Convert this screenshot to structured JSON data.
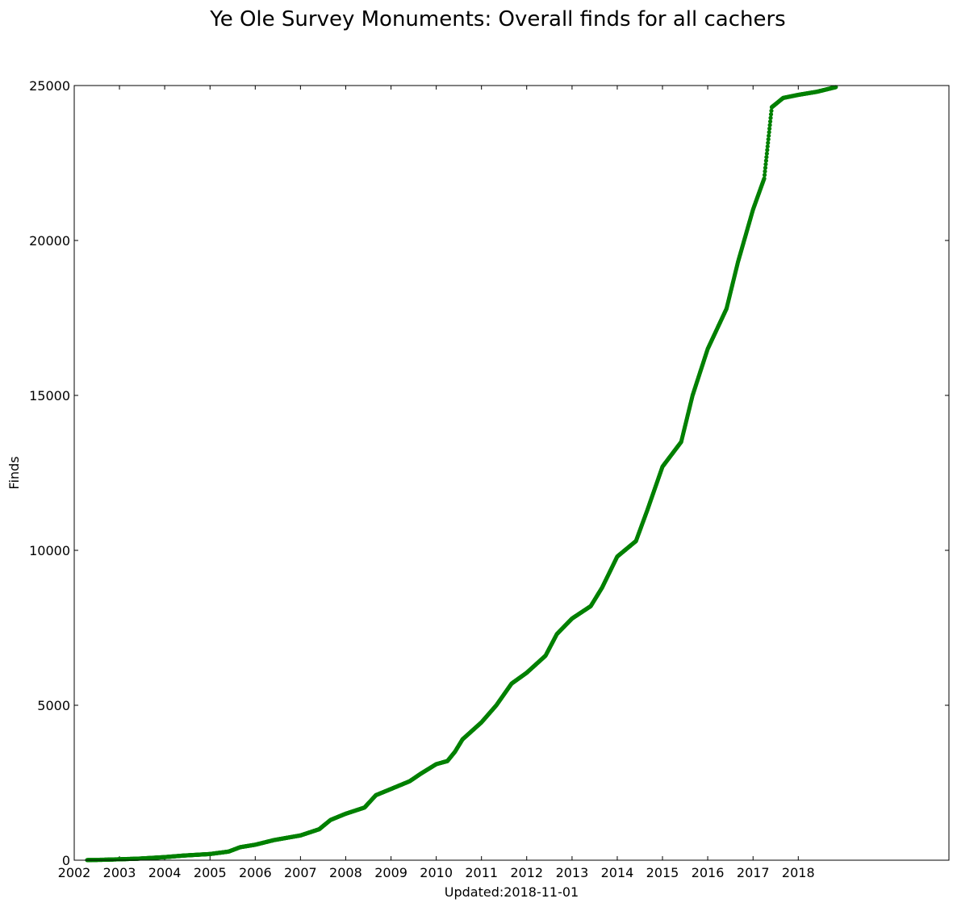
{
  "chart_data": {
    "type": "scatter",
    "title": "Ye Ole Survey Monuments: Overall finds for all cachers",
    "xlabel": "Updated:2018-11-01",
    "ylabel": "Finds",
    "x_tick_labels": [
      "2002",
      "2003",
      "2004",
      "2005",
      "2006",
      "2007",
      "2008",
      "2009",
      "2010",
      "2011",
      "2012",
      "2013",
      "2014",
      "2015",
      "2016",
      "2017",
      "2018"
    ],
    "y_tick_labels": [
      "0",
      "5000",
      "10000",
      "15000",
      "20000",
      "25000"
    ],
    "xlim": [
      "2002-01-01",
      "2021-05-01"
    ],
    "ylim": [
      0,
      25000
    ],
    "grid": false,
    "marker_color": "#008000",
    "series": [
      {
        "x": [
          "2002-04-15",
          "2002-06-01",
          "2002-09-01",
          "2003-01-01",
          "2003-06-01",
          "2004-01-01",
          "2004-06-01",
          "2005-01-01",
          "2005-06-01",
          "2005-09-01",
          "2006-01-01",
          "2006-06-01",
          "2007-01-01",
          "2007-06-01",
          "2007-09-01",
          "2008-01-01",
          "2008-06-01",
          "2008-09-01",
          "2009-01-01",
          "2009-06-01",
          "2009-09-01",
          "2010-01-01",
          "2010-04-01",
          "2010-06-01",
          "2010-08-01",
          "2011-01-01",
          "2011-05-01",
          "2011-09-01",
          "2012-01-01",
          "2012-06-01",
          "2012-09-01",
          "2013-01-01",
          "2013-06-01",
          "2013-09-01",
          "2014-01-01",
          "2014-06-01",
          "2014-09-01",
          "2015-01-01",
          "2015-06-01",
          "2015-09-01",
          "2016-01-01",
          "2016-06-01",
          "2016-09-01",
          "2017-01-01",
          "2017-04-01",
          "2017-06-01",
          "2017-09-01",
          "2018-01-01",
          "2018-06-01",
          "2018-10-31"
        ],
        "y": [
          5,
          8,
          15,
          30,
          50,
          100,
          150,
          200,
          280,
          420,
          500,
          650,
          800,
          1000,
          1300,
          1500,
          1700,
          2100,
          2300,
          2550,
          2800,
          3100,
          3200,
          3500,
          3900,
          4450,
          5000,
          5700,
          6050,
          6600,
          7300,
          7800,
          8200,
          8800,
          9800,
          10300,
          11300,
          12700,
          13500,
          15000,
          16500,
          17800,
          19300,
          21000,
          22000,
          24300,
          24600,
          24700,
          24800,
          24950
        ]
      }
    ]
  }
}
